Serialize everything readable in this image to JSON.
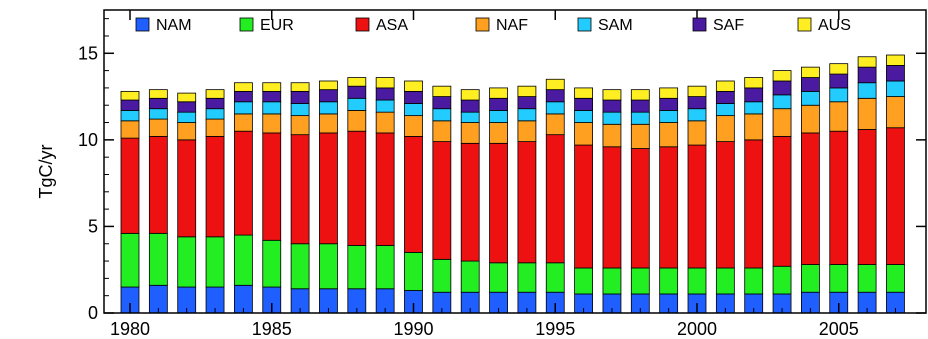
{
  "chart_data": {
    "type": "bar",
    "stacked": true,
    "title": "",
    "xlabel": "",
    "ylabel": "TgC/yr",
    "ylim": [
      0,
      17.5
    ],
    "yticks": [
      0,
      5,
      10,
      15
    ],
    "xticks": [
      1980,
      1985,
      1990,
      1995,
      2000,
      2005
    ],
    "grid": false,
    "legend": "top",
    "categories": [
      1980,
      1981,
      1982,
      1983,
      1984,
      1985,
      1986,
      1987,
      1988,
      1989,
      1990,
      1991,
      1992,
      1993,
      1994,
      1995,
      1996,
      1997,
      1998,
      1999,
      2000,
      2001,
      2002,
      2003,
      2004,
      2005,
      2006,
      2007
    ],
    "series": [
      {
        "name": "NAM",
        "color": "#1f5fff",
        "values": [
          1.5,
          1.6,
          1.5,
          1.5,
          1.6,
          1.5,
          1.4,
          1.4,
          1.4,
          1.4,
          1.3,
          1.2,
          1.2,
          1.2,
          1.2,
          1.2,
          1.1,
          1.1,
          1.1,
          1.1,
          1.1,
          1.1,
          1.1,
          1.1,
          1.2,
          1.2,
          1.2,
          1.2
        ]
      },
      {
        "name": "EUR",
        "color": "#22ee22",
        "values": [
          3.1,
          3.0,
          2.9,
          2.9,
          2.9,
          2.7,
          2.6,
          2.6,
          2.5,
          2.5,
          2.2,
          1.9,
          1.8,
          1.7,
          1.7,
          1.7,
          1.5,
          1.5,
          1.5,
          1.5,
          1.5,
          1.5,
          1.5,
          1.6,
          1.6,
          1.6,
          1.6,
          1.6
        ]
      },
      {
        "name": "ASA",
        "color": "#ee1111",
        "values": [
          5.5,
          5.6,
          5.6,
          5.8,
          6.0,
          6.2,
          6.3,
          6.4,
          6.6,
          6.5,
          6.7,
          6.8,
          6.8,
          6.9,
          7.0,
          7.4,
          7.1,
          7.0,
          6.9,
          7.0,
          7.1,
          7.3,
          7.4,
          7.5,
          7.6,
          7.7,
          7.8,
          7.9
        ]
      },
      {
        "name": "NAF",
        "color": "#ffa020",
        "values": [
          1.0,
          1.0,
          1.0,
          1.0,
          1.0,
          1.1,
          1.1,
          1.1,
          1.2,
          1.2,
          1.2,
          1.2,
          1.2,
          1.2,
          1.2,
          1.2,
          1.3,
          1.3,
          1.4,
          1.4,
          1.4,
          1.5,
          1.5,
          1.6,
          1.6,
          1.7,
          1.8,
          1.8
        ]
      },
      {
        "name": "SAM",
        "color": "#22ccff",
        "values": [
          0.6,
          0.6,
          0.6,
          0.6,
          0.7,
          0.7,
          0.7,
          0.7,
          0.7,
          0.7,
          0.7,
          0.7,
          0.6,
          0.7,
          0.7,
          0.7,
          0.7,
          0.7,
          0.7,
          0.7,
          0.7,
          0.7,
          0.7,
          0.8,
          0.8,
          0.8,
          0.9,
          0.9
        ]
      },
      {
        "name": "SAF",
        "color": "#4a1aa0",
        "values": [
          0.6,
          0.6,
          0.6,
          0.6,
          0.6,
          0.6,
          0.7,
          0.7,
          0.7,
          0.7,
          0.7,
          0.7,
          0.7,
          0.7,
          0.7,
          0.7,
          0.7,
          0.7,
          0.7,
          0.7,
          0.7,
          0.7,
          0.8,
          0.8,
          0.8,
          0.8,
          0.9,
          0.9
        ]
      },
      {
        "name": "AUS",
        "color": "#ffee22",
        "values": [
          0.5,
          0.5,
          0.5,
          0.5,
          0.5,
          0.5,
          0.5,
          0.5,
          0.5,
          0.6,
          0.6,
          0.6,
          0.6,
          0.6,
          0.6,
          0.6,
          0.6,
          0.6,
          0.6,
          0.6,
          0.6,
          0.6,
          0.6,
          0.6,
          0.6,
          0.6,
          0.6,
          0.6
        ]
      }
    ]
  }
}
